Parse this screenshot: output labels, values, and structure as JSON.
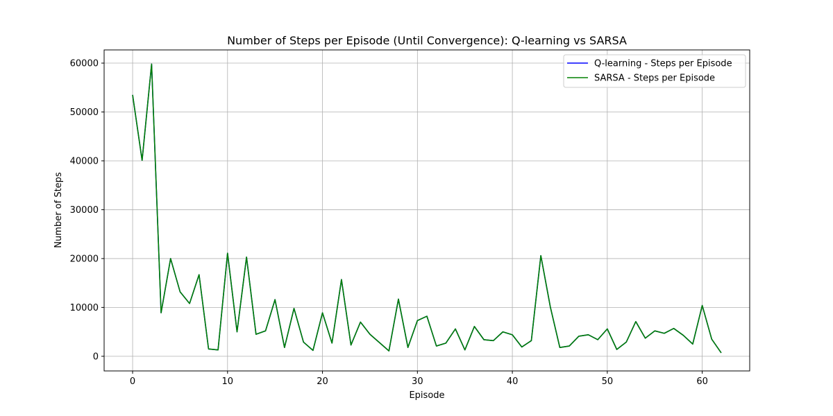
{
  "chart_data": {
    "type": "line",
    "title": "Number of Steps per Episode (Until Convergence): Q-learning vs SARSA",
    "xlabel": "Episode",
    "ylabel": "Number of Steps",
    "xlim": [
      -3,
      65
    ],
    "ylim": [
      -3000,
      62700
    ],
    "xticks": [
      0,
      10,
      20,
      30,
      40,
      50,
      60
    ],
    "yticks": [
      0,
      10000,
      20000,
      30000,
      40000,
      50000,
      60000
    ],
    "grid": true,
    "legend_position": "top-right",
    "series": [
      {
        "name": "Q-learning - Steps per Episode",
        "color": "#0000ff",
        "x": [
          0,
          1,
          2,
          3,
          4,
          5,
          6,
          7,
          8,
          9,
          10,
          11,
          12,
          13,
          14,
          15,
          16,
          17,
          18,
          19,
          20,
          21,
          22,
          23,
          24,
          25,
          26,
          27,
          28,
          29,
          30,
          31,
          32,
          33,
          34,
          35,
          36,
          37,
          38,
          39,
          40,
          41,
          42,
          43,
          44,
          45,
          46,
          47,
          48,
          49,
          50,
          51,
          52,
          53,
          54,
          55,
          56,
          57,
          58,
          59,
          60,
          61,
          62
        ],
        "values": [
          53500,
          40100,
          59800,
          8900,
          20000,
          13200,
          10800,
          16700,
          1500,
          1300,
          21100,
          5000,
          20300,
          4500,
          5200,
          11600,
          1800,
          9800,
          2900,
          1200,
          8900,
          2700,
          15700,
          2300,
          7000,
          4500,
          2800,
          1100,
          11700,
          1800,
          7300,
          8200,
          2100,
          2700,
          5600,
          1300,
          6100,
          3400,
          3200,
          5000,
          4400,
          1900,
          3200,
          20600,
          10100,
          1800,
          2100,
          4100,
          4400,
          3400,
          5600,
          1400,
          2900,
          7100,
          3700,
          5200,
          4700,
          5700,
          4300,
          2500,
          10400,
          3500,
          700
        ]
      },
      {
        "name": "SARSA - Steps per Episode",
        "color": "#008000",
        "x": [
          0,
          1,
          2,
          3,
          4,
          5,
          6,
          7,
          8,
          9,
          10,
          11,
          12,
          13,
          14,
          15,
          16,
          17,
          18,
          19,
          20,
          21,
          22,
          23,
          24,
          25,
          26,
          27,
          28,
          29,
          30,
          31,
          32,
          33,
          34,
          35,
          36,
          37,
          38,
          39,
          40,
          41,
          42,
          43,
          44,
          45,
          46,
          47,
          48,
          49,
          50,
          51,
          52,
          53,
          54,
          55,
          56,
          57,
          58,
          59,
          60,
          61,
          62
        ],
        "values": [
          53500,
          40100,
          59800,
          8900,
          20000,
          13200,
          10800,
          16700,
          1500,
          1300,
          21100,
          5000,
          20300,
          4500,
          5200,
          11600,
          1800,
          9800,
          2900,
          1200,
          8900,
          2700,
          15700,
          2300,
          7000,
          4500,
          2800,
          1100,
          11700,
          1800,
          7300,
          8200,
          2100,
          2700,
          5600,
          1300,
          6100,
          3400,
          3200,
          5000,
          4400,
          1900,
          3200,
          20600,
          10100,
          1800,
          2100,
          4100,
          4400,
          3400,
          5600,
          1400,
          2900,
          7100,
          3700,
          5200,
          4700,
          5700,
          4300,
          2500,
          10400,
          3500,
          700
        ]
      }
    ]
  }
}
